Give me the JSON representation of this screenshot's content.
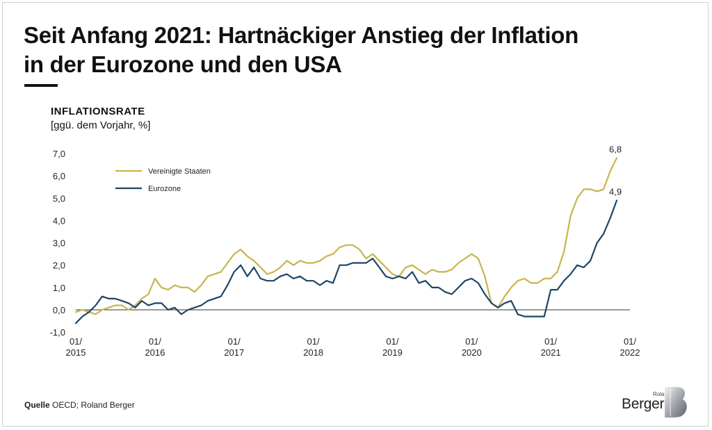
{
  "title_line1": "Seit Anfang 2021: Hartnäckiger Anstieg der Inflation",
  "title_line2": "in der Eurozone und den USA",
  "ylabel_main": "INFLATIONSRATE",
  "ylabel_sub": "[ggü. dem Vorjahr, %]",
  "source_label": "Quelle",
  "source_text": "OECD; Roland Berger",
  "brand_small": "Roland",
  "brand_name": "Berger",
  "colors": {
    "usa": "#c9b44a",
    "eurozone": "#1c4566",
    "axis": "#333333"
  },
  "chart_data": {
    "type": "line",
    "ylim": [
      -1.0,
      7.0
    ],
    "yticks": [
      "-1,0",
      "0,0",
      "1,0",
      "2,0",
      "3,0",
      "4,0",
      "5,0",
      "6,0",
      "7,0"
    ],
    "x_ticks": [
      {
        "month": 0,
        "line1": "01/",
        "line2": "2015"
      },
      {
        "month": 12,
        "line1": "01/",
        "line2": "2016"
      },
      {
        "month": 24,
        "line1": "01/",
        "line2": "2017"
      },
      {
        "month": 36,
        "line1": "01/",
        "line2": "2018"
      },
      {
        "month": 48,
        "line1": "01/",
        "line2": "2019"
      },
      {
        "month": 60,
        "line1": "01/",
        "line2": "2020"
      },
      {
        "month": 72,
        "line1": "01/",
        "line2": "2021"
      },
      {
        "month": 84,
        "line1": "01/",
        "line2": "2022"
      }
    ],
    "grid": false,
    "legend_position": "top-left",
    "series": [
      {
        "name": "Vereinigte Staaten",
        "color": "#c9b44a",
        "end_label": "6,8",
        "values": [
          -0.1,
          0.0,
          -0.1,
          -0.2,
          0.0,
          0.1,
          0.2,
          0.2,
          0.0,
          0.2,
          0.5,
          0.7,
          1.4,
          1.0,
          0.9,
          1.1,
          1.0,
          1.0,
          0.8,
          1.1,
          1.5,
          1.6,
          1.7,
          2.1,
          2.5,
          2.7,
          2.4,
          2.2,
          1.9,
          1.6,
          1.7,
          1.9,
          2.2,
          2.0,
          2.2,
          2.1,
          2.1,
          2.2,
          2.4,
          2.5,
          2.8,
          2.9,
          2.9,
          2.7,
          2.3,
          2.5,
          2.2,
          1.9,
          1.6,
          1.5,
          1.9,
          2.0,
          1.8,
          1.6,
          1.8,
          1.7,
          1.7,
          1.8,
          2.1,
          2.3,
          2.5,
          2.3,
          1.5,
          0.3,
          0.1,
          0.6,
          1.0,
          1.3,
          1.4,
          1.2,
          1.2,
          1.4,
          1.4,
          1.7,
          2.6,
          4.2,
          5.0,
          5.4,
          5.4,
          5.3,
          5.4,
          6.2,
          6.8
        ]
      },
      {
        "name": "Eurozone",
        "color": "#1c4566",
        "end_label": "4,9",
        "values": [
          -0.6,
          -0.3,
          -0.1,
          0.2,
          0.6,
          0.5,
          0.5,
          0.4,
          0.3,
          0.1,
          0.4,
          0.2,
          0.3,
          0.3,
          0.0,
          0.1,
          -0.2,
          0.0,
          0.1,
          0.2,
          0.4,
          0.5,
          0.6,
          1.1,
          1.7,
          2.0,
          1.5,
          1.9,
          1.4,
          1.3,
          1.3,
          1.5,
          1.6,
          1.4,
          1.5,
          1.3,
          1.3,
          1.1,
          1.3,
          1.2,
          2.0,
          2.0,
          2.1,
          2.1,
          2.1,
          2.3,
          1.9,
          1.5,
          1.4,
          1.5,
          1.4,
          1.7,
          1.2,
          1.3,
          1.0,
          1.0,
          0.8,
          0.7,
          1.0,
          1.3,
          1.4,
          1.2,
          0.7,
          0.3,
          0.1,
          0.3,
          0.4,
          -0.2,
          -0.3,
          -0.3,
          -0.3,
          -0.3,
          0.9,
          0.9,
          1.3,
          1.6,
          2.0,
          1.9,
          2.2,
          3.0,
          3.4,
          4.1,
          4.9
        ]
      }
    ]
  }
}
